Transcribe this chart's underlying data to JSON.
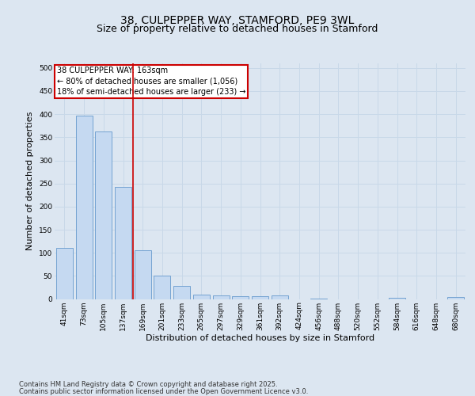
{
  "title_line1": "38, CULPEPPER WAY, STAMFORD, PE9 3WL",
  "title_line2": "Size of property relative to detached houses in Stamford",
  "xlabel": "Distribution of detached houses by size in Stamford",
  "ylabel": "Number of detached properties",
  "categories": [
    "41sqm",
    "73sqm",
    "105sqm",
    "137sqm",
    "169sqm",
    "201sqm",
    "233sqm",
    "265sqm",
    "297sqm",
    "329sqm",
    "361sqm",
    "392sqm",
    "424sqm",
    "456sqm",
    "488sqm",
    "520sqm",
    "552sqm",
    "584sqm",
    "616sqm",
    "648sqm",
    "680sqm"
  ],
  "values": [
    111,
    396,
    363,
    243,
    105,
    50,
    29,
    9,
    8,
    6,
    6,
    7,
    0,
    1,
    0,
    0,
    0,
    2,
    0,
    0,
    4
  ],
  "bar_color": "#c5d9f1",
  "bar_edge_color": "#6699cc",
  "vline_x": 3.5,
  "vline_color": "#cc0000",
  "annotation_text": "38 CULPEPPER WAY: 163sqm\n← 80% of detached houses are smaller (1,056)\n18% of semi-detached houses are larger (233) →",
  "annotation_box_color": "#ffffff",
  "annotation_box_edge": "#cc0000",
  "ylim": [
    0,
    510
  ],
  "yticks": [
    0,
    50,
    100,
    150,
    200,
    250,
    300,
    350,
    400,
    450,
    500
  ],
  "grid_color": "#c8d8e8",
  "background_color": "#dce6f1",
  "plot_bg_color": "#dce6f1",
  "footer_line1": "Contains HM Land Registry data © Crown copyright and database right 2025.",
  "footer_line2": "Contains public sector information licensed under the Open Government Licence v3.0.",
  "title_fontsize": 10,
  "subtitle_fontsize": 9,
  "tick_fontsize": 6.5,
  "label_fontsize": 8,
  "footer_fontsize": 6,
  "annotation_fontsize": 7
}
